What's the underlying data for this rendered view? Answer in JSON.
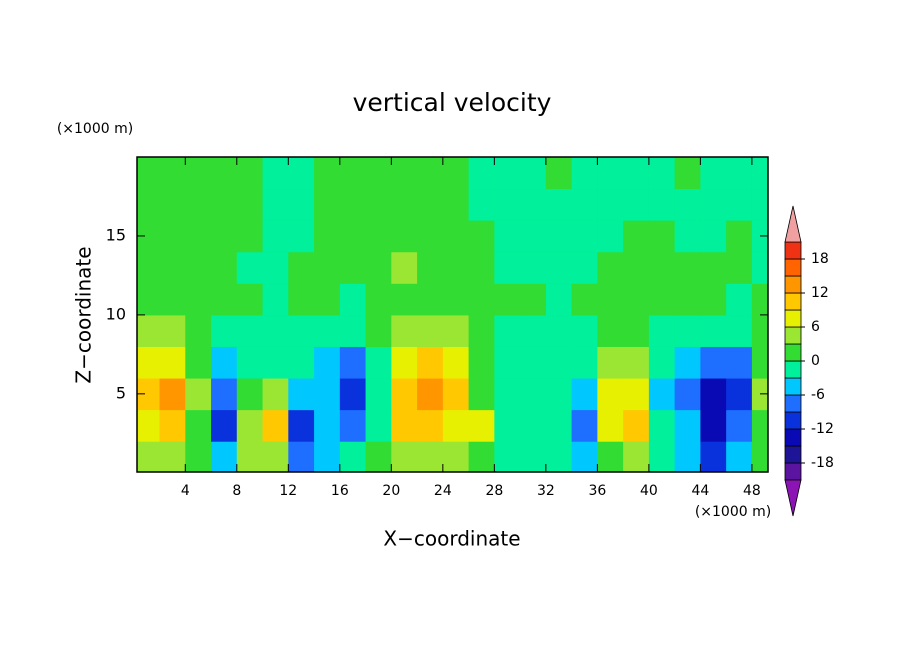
{
  "chart_data": {
    "type": "contour",
    "title": "vertical velocity",
    "x_label": "X−coordinate",
    "y_label": "Z−coordinate",
    "x_unit": "(×1000 m)",
    "y_unit": "(×1000 m)",
    "x": [
      1,
      3,
      5,
      7,
      9,
      11,
      13,
      15,
      17,
      19,
      21,
      23,
      25,
      27,
      29,
      31,
      33,
      35,
      37,
      39,
      41,
      43,
      45,
      47,
      49
    ],
    "y": [
      1,
      3,
      5,
      7,
      9,
      11,
      13,
      15,
      17,
      19
    ],
    "values": [
      [
        3,
        4,
        1,
        -4,
        4,
        3,
        -7,
        -4,
        -2,
        1,
        5,
        4,
        3,
        2,
        -1,
        -2,
        -2,
        -5,
        1,
        3,
        -2,
        -5,
        -10,
        -5,
        1
      ],
      [
        8,
        10,
        2,
        -10,
        5,
        10,
        -11,
        -6,
        -9,
        -3,
        10,
        11,
        6,
        7,
        -1,
        -2,
        -3,
        -9,
        7,
        10,
        -3,
        -6,
        -14,
        -8,
        2
      ],
      [
        11,
        13,
        3,
        -9,
        2,
        4,
        -4,
        -5,
        -11,
        -3,
        11,
        12,
        9,
        2,
        -1,
        -2,
        -2,
        -4,
        6,
        8,
        -4,
        -9,
        -13,
        -11,
        3
      ],
      [
        7,
        8,
        2,
        -4,
        -2,
        -2,
        -2,
        -4,
        -7,
        -1,
        7,
        9,
        6,
        1,
        -1,
        -3,
        -3,
        -2,
        3,
        4,
        -2,
        -5,
        -9,
        -8,
        2
      ],
      [
        3,
        4,
        1,
        -1,
        -1,
        -2,
        -1,
        -2,
        -3,
        0,
        4,
        5,
        3,
        1,
        -1,
        -1,
        -2,
        -1,
        1,
        2,
        -1,
        -2,
        -3,
        -3,
        1
      ],
      [
        1,
        2,
        1,
        1,
        0,
        -1,
        0,
        1,
        -1,
        1,
        2,
        2,
        1,
        1,
        0,
        1,
        -1,
        0,
        1,
        1,
        0,
        1,
        0,
        -1,
        0
      ],
      [
        1,
        1,
        1,
        1,
        -1,
        -1,
        0,
        1,
        1,
        2,
        3,
        2,
        1,
        0,
        -1,
        -1,
        -1,
        -1,
        0,
        1,
        1,
        0,
        1,
        0,
        -1
      ],
      [
        2,
        2,
        1,
        1,
        0,
        -1,
        -1,
        1,
        2,
        1,
        1,
        1,
        2,
        1,
        -1,
        -1,
        -1,
        -1,
        -1,
        0,
        0,
        -1,
        -1,
        0,
        -1
      ],
      [
        1,
        1,
        1,
        1,
        0,
        -1,
        -1,
        1,
        1,
        1,
        1,
        0,
        0,
        -1,
        -1,
        -1,
        -1,
        -1,
        -1,
        -1,
        -1,
        -1,
        -1,
        -1,
        -1
      ],
      [
        1,
        1,
        1,
        1,
        0,
        -1,
        -1,
        1,
        1,
        1,
        1,
        0,
        0,
        -1,
        -1,
        -1,
        1,
        -1,
        -1,
        -1,
        -1,
        1,
        -1,
        -1,
        -1
      ]
    ],
    "xlim": [
      0.25,
      49.25
    ],
    "ylim": [
      0.05,
      20
    ],
    "xticks": [
      4,
      8,
      12,
      16,
      20,
      24,
      28,
      32,
      36,
      40,
      44,
      48
    ],
    "yticks": [
      5,
      10,
      15
    ],
    "levels": [
      -21,
      -18,
      -15,
      -12,
      -9,
      -6,
      -3,
      0,
      3,
      6,
      9,
      12,
      15,
      18,
      21
    ],
    "colors": [
      "#8c14b4",
      "#5a14a0",
      "#1e1496",
      "#0a0ab4",
      "#0a32dc",
      "#1e6eff",
      "#00c8ff",
      "#00f09b",
      "#32dc32",
      "#9be632",
      "#e6f000",
      "#ffc800",
      "#ff9600",
      "#ff6400",
      "#f03214",
      "#f0a0a0"
    ],
    "colorbar_ticks": [
      -18,
      -12,
      -6,
      0,
      6,
      12,
      18
    ]
  }
}
